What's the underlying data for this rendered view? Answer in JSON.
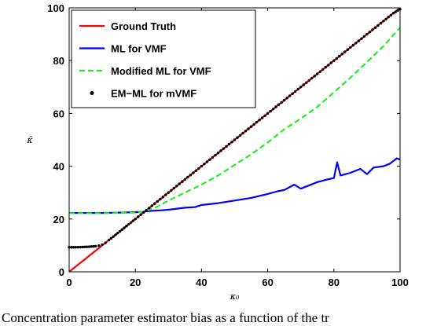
{
  "chart_data": {
    "type": "line",
    "title": "",
    "xlabel": "κ₀",
    "ylabel": "κ̂",
    "xlim": [
      0,
      100
    ],
    "ylim": [
      0,
      100
    ],
    "xticks": [
      0,
      20,
      40,
      60,
      80,
      100
    ],
    "yticks": [
      0,
      20,
      40,
      60,
      80,
      100
    ],
    "grid": false,
    "legend_position": "top-left",
    "series": [
      {
        "name": "Ground Truth",
        "color": "#ff0000",
        "style": "solid",
        "x": [
          0,
          100
        ],
        "y": [
          0,
          100
        ]
      },
      {
        "name": "ML for VMF",
        "color": "#0000ff",
        "style": "solid",
        "x": [
          0,
          5,
          10,
          15,
          20,
          22,
          25,
          28,
          30,
          35,
          38,
          40,
          45,
          50,
          55,
          60,
          63,
          65,
          68,
          70,
          72,
          75,
          78,
          80,
          81,
          82,
          85,
          88,
          90,
          92,
          95,
          97,
          99,
          100
        ],
        "y": [
          22.3,
          22.3,
          22.3,
          22.4,
          22.6,
          22.7,
          23.1,
          23.3,
          23.5,
          24.3,
          24.5,
          25.3,
          26.0,
          27.0,
          28.0,
          29.5,
          30.5,
          31.0,
          33.0,
          31.5,
          32.5,
          34.0,
          35.0,
          35.5,
          41.5,
          36.5,
          37.5,
          39.0,
          37.0,
          39.5,
          40.0,
          41.0,
          43.0,
          42.5
        ]
      },
      {
        "name": "Modified ML for VMF",
        "color": "#22ee22",
        "style": "dashed",
        "x": [
          0,
          10,
          20,
          22,
          24,
          26,
          28,
          30,
          35,
          40,
          45,
          50,
          55,
          60,
          65,
          70,
          75,
          80,
          85,
          90,
          95,
          100
        ],
        "y": [
          22.2,
          22.2,
          22.4,
          22.7,
          23.4,
          24.3,
          25.6,
          27.0,
          30.0,
          33.0,
          36.5,
          40.5,
          44.5,
          49.0,
          54.0,
          58.0,
          62.5,
          68.0,
          73.5,
          79.5,
          85.5,
          92.5
        ]
      },
      {
        "name": "EM−ML for mVMF",
        "color": "#000000",
        "style": "dotted",
        "x": [
          0,
          2,
          4,
          6,
          8,
          9,
          10,
          11,
          12,
          14,
          16,
          18,
          20,
          25,
          30,
          35,
          40,
          45,
          50,
          55,
          60,
          65,
          70,
          75,
          80,
          85,
          90,
          95,
          98,
          100
        ],
        "y": [
          9.3,
          9.3,
          9.4,
          9.5,
          9.7,
          9.9,
          10.3,
          11.0,
          12.0,
          14.0,
          16.0,
          18.0,
          20.0,
          25.0,
          30.0,
          35.0,
          40.0,
          45.0,
          50.0,
          55.0,
          60.0,
          65.0,
          70.0,
          75.0,
          80.0,
          85.0,
          90.0,
          95.0,
          98.0,
          99.5
        ]
      }
    ]
  },
  "caption": "Concentration parameter estimator bias as a function of the tr"
}
